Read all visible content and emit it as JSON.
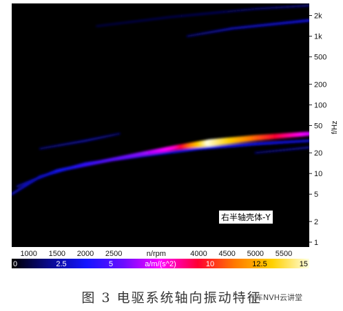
{
  "chart_data": {
    "type": "heatmap",
    "xlabel": "n/rpm",
    "ylabel": "f/Hz",
    "x_ticks": [
      1000,
      1500,
      2000,
      2500,
      4000,
      4500,
      5000,
      5500
    ],
    "x_range": [
      700,
      5950
    ],
    "y_scale": "log",
    "y_range": [
      0.85,
      3000
    ],
    "y_ticks": [
      1,
      2,
      5,
      10,
      20,
      50,
      100,
      200,
      500,
      1000,
      2000
    ],
    "y_tick_labels": [
      "1",
      "2",
      "5",
      "10",
      "20",
      "50",
      "100",
      "200",
      "500",
      "1k",
      "2k"
    ],
    "colorbar": {
      "label": "a/m/(s^2)",
      "range": [
        0,
        15
      ],
      "tick_labels": [
        "0",
        "2.5",
        "5",
        "a/m/(s^2)",
        "10",
        "12.5",
        "15"
      ],
      "tick_values": [
        0,
        2.5,
        5,
        7.5,
        10,
        12.5,
        15
      ],
      "stops": [
        "#000000",
        "#0a0a8c",
        "#1414ff",
        "#6a0dff",
        "#ff00ff",
        "#ff0033",
        "#ff7a00",
        "#ffd000",
        "#ffffe0"
      ]
    },
    "features": [
      {
        "points": [
          [
            700,
            5
          ],
          [
            1200,
            9
          ],
          [
            2000,
            14
          ],
          [
            3000,
            18
          ],
          [
            4000,
            23
          ],
          [
            5000,
            27
          ],
          [
            5950,
            30
          ]
        ],
        "intensity": [
          2.5,
          3,
          3,
          3,
          3.5,
          3.5,
          3
        ]
      },
      {
        "points": [
          [
            800,
            6.5
          ],
          [
            1500,
            11
          ],
          [
            2300,
            15
          ],
          [
            3000,
            19.5
          ],
          [
            3600,
            24
          ],
          [
            4200,
            28
          ],
          [
            5000,
            33
          ],
          [
            5950,
            38
          ]
        ],
        "intensity": [
          2,
          3.5,
          5,
          6,
          8,
          15,
          11,
          7
        ]
      },
      {
        "points": [
          [
            1200,
            23
          ],
          [
            2000,
            30
          ],
          [
            2600,
            38
          ]
        ],
        "intensity": [
          1.5,
          2.2,
          1.5
        ]
      },
      {
        "points": [
          [
            3800,
            1000
          ],
          [
            4600,
            1300
          ],
          [
            5950,
            1700
          ]
        ],
        "intensity": [
          1.5,
          2.5,
          3.2
        ]
      },
      {
        "points": [
          [
            2200,
            1400
          ],
          [
            3500,
            1900
          ],
          [
            5000,
            2500
          ],
          [
            5950,
            2800
          ]
        ],
        "intensity": [
          1,
          1.2,
          1.5,
          1.8
        ]
      },
      {
        "points": [
          [
            5000,
            20
          ],
          [
            5950,
            24
          ]
        ],
        "intensity": [
          1.5,
          2
        ]
      }
    ]
  },
  "annotation": "右半轴壳体-Y",
  "caption": "图 3   电驱系统轴向振动特征",
  "watermark": "汽车NVH云讲堂"
}
